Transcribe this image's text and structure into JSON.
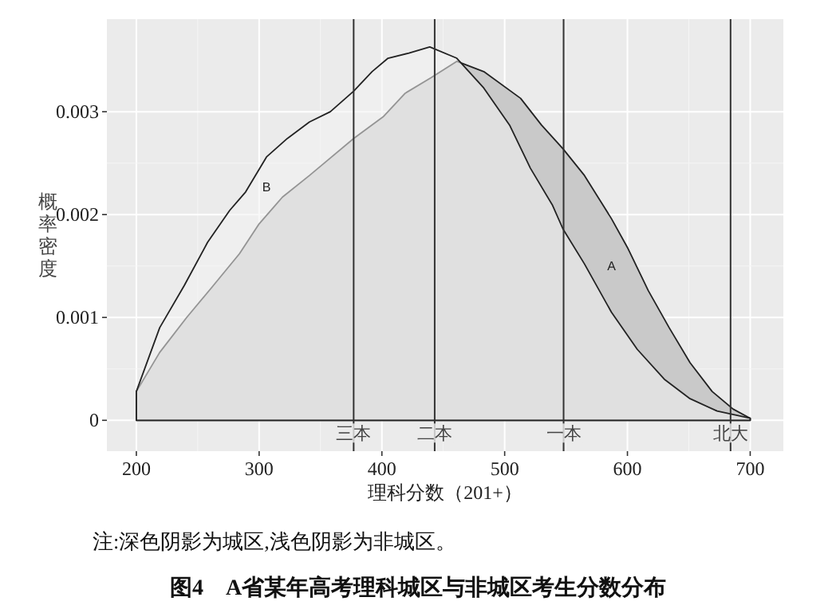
{
  "chart_data": {
    "type": "area",
    "xlabel": "理科分数（201+）",
    "ylabel": "概率密度",
    "title": "图4　A省某年高考理科城区与非城区考生分数分布",
    "annotations": [
      "注:深色阴影为城区,浅色阴影为非城区。"
    ],
    "xlim": [
      176,
      727
    ],
    "ylim": [
      -0.0003,
      0.0039
    ],
    "xticks": [
      200,
      300,
      400,
      500,
      600,
      700
    ],
    "yticks": [
      0,
      0.001,
      0.002,
      0.003
    ],
    "grid": true,
    "series": [
      {
        "name": "A",
        "color": "#c9c9c9",
        "x": [
          200,
          219,
          241,
          262,
          284,
          300,
          319,
          341,
          354,
          377,
          401,
          419,
          440,
          461,
          483,
          513,
          530,
          547.5,
          565,
          587,
          600,
          617,
          634,
          651,
          669,
          686,
          700
        ],
        "values": [
          0.00028,
          0.00066,
          0.001,
          0.0013,
          0.00162,
          0.00191,
          0.00217,
          0.00238,
          0.00251,
          0.00274,
          0.00295,
          0.00318,
          0.00333,
          0.00349,
          0.00339,
          0.00313,
          0.00287,
          0.00264,
          0.00238,
          0.00196,
          0.00168,
          0.00126,
          0.0009,
          0.00056,
          0.00028,
          0.00011,
          2e-05
        ]
      },
      {
        "name": "B",
        "color": "#f2f2f2",
        "x": [
          200,
          219,
          239,
          258,
          276,
          289,
          306,
          323,
          341,
          358,
          377,
          392,
          405,
          422,
          439,
          461,
          483,
          504,
          521,
          539,
          547.5,
          565,
          587,
          608,
          630,
          651,
          673,
          700
        ],
        "values": [
          0.00028,
          0.0009,
          0.00131,
          0.00173,
          0.00204,
          0.00222,
          0.00256,
          0.00274,
          0.0029,
          0.003,
          0.0032,
          0.00339,
          0.00352,
          0.00357,
          0.00363,
          0.00352,
          0.00323,
          0.00287,
          0.00245,
          0.00209,
          0.00186,
          0.00152,
          0.00105,
          0.00069,
          0.0004,
          0.00021,
          9e-05,
          2e-05
        ]
      }
    ],
    "ref_lines": [
      {
        "axis": "x",
        "value": 377,
        "label": "三本"
      },
      {
        "axis": "x",
        "value": 443,
        "label": "二本"
      },
      {
        "axis": "x",
        "value": 548,
        "label": "一本"
      },
      {
        "axis": "x",
        "value": 684,
        "label": "北大"
      }
    ]
  }
}
